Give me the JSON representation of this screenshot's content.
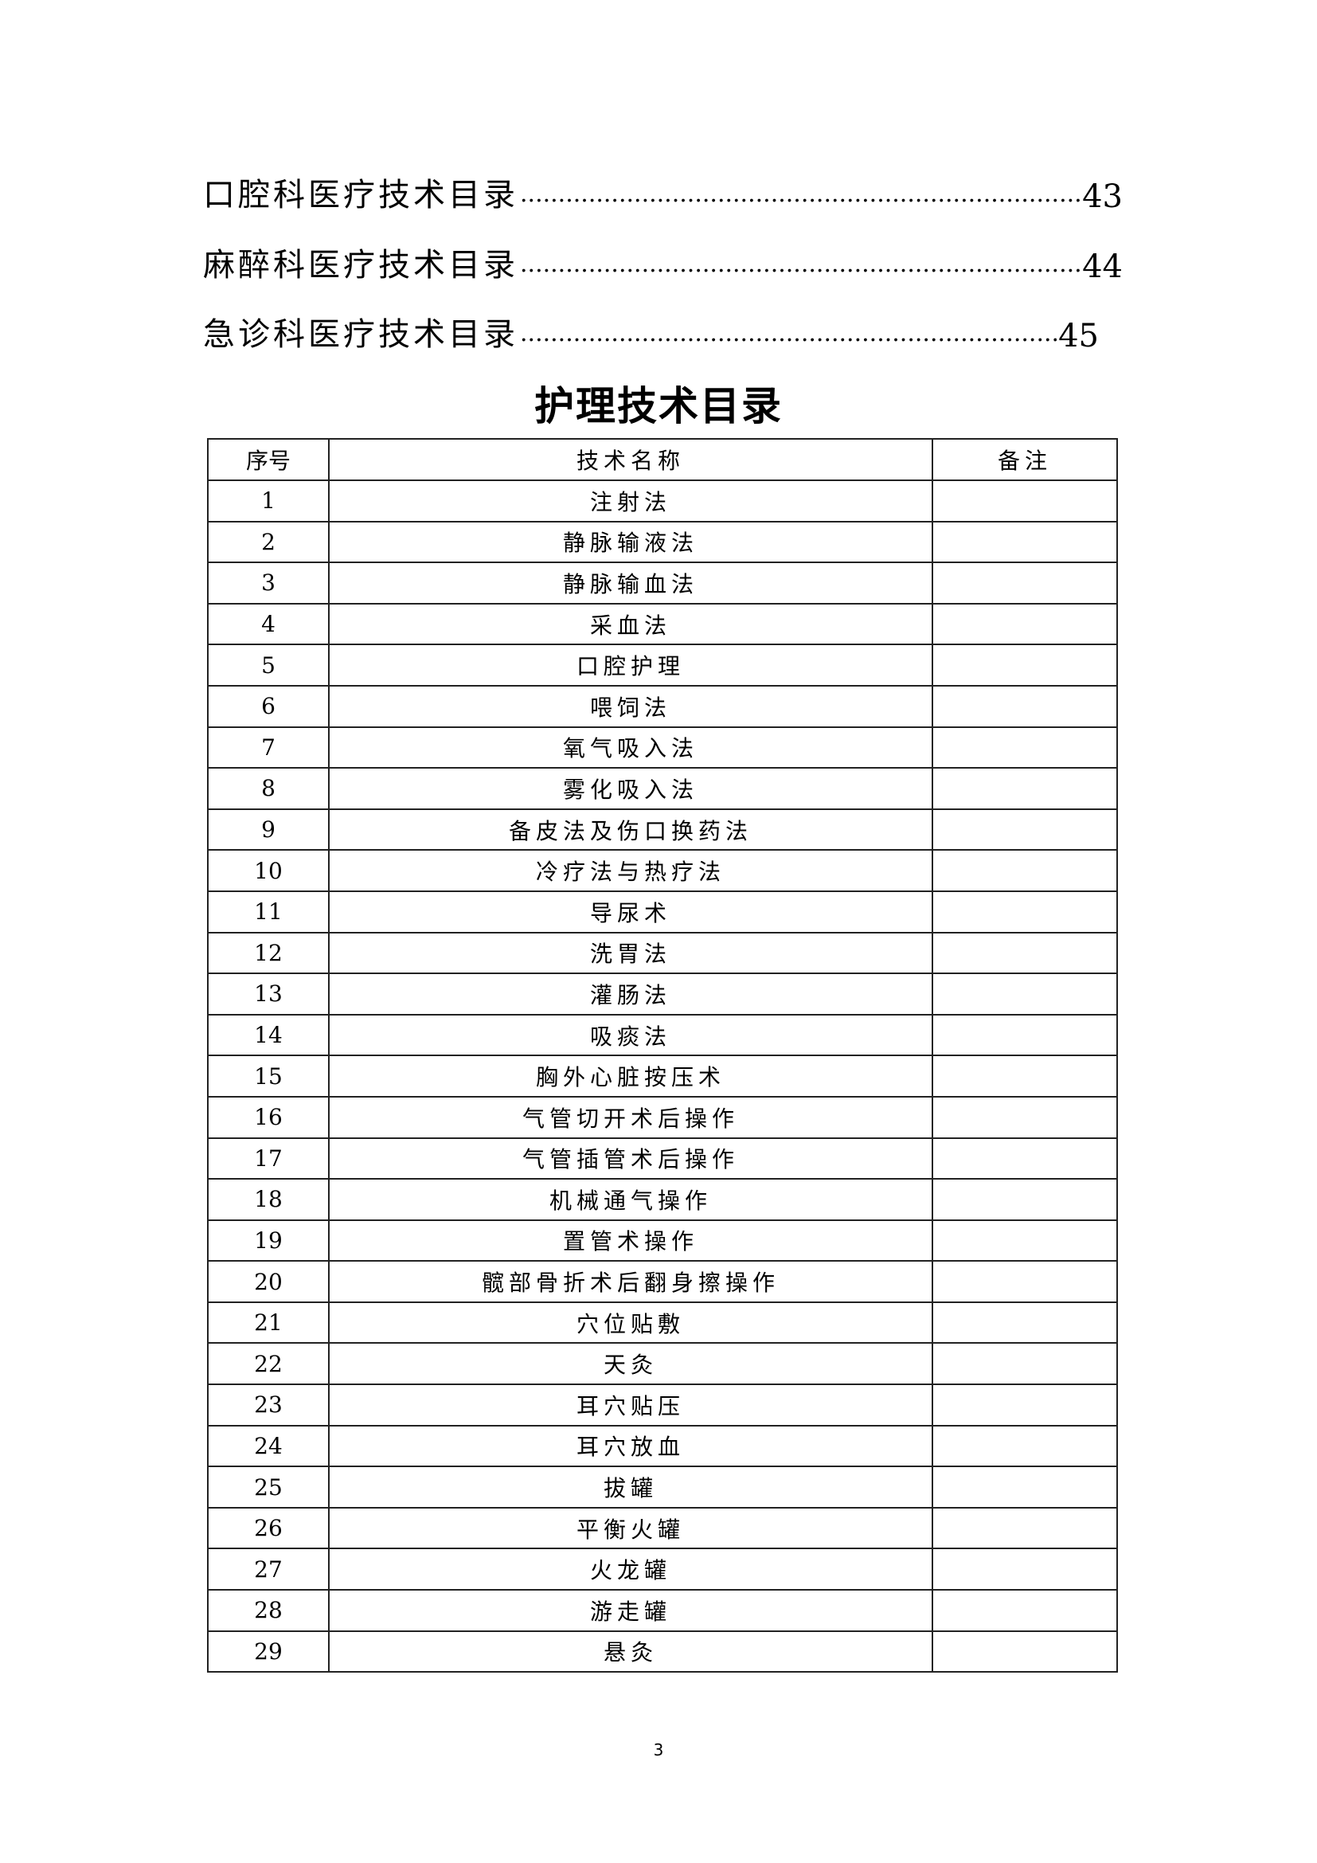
{
  "toc": [
    {
      "label": "口腔科医疗技术目录",
      "page": "43"
    },
    {
      "label": "麻醉科医疗技术目录",
      "page": "44"
    },
    {
      "label": "急诊科医疗技术目录",
      "page": "45"
    }
  ],
  "title": "护理技术目录",
  "table": {
    "headers": [
      "序号",
      "技术名称",
      "备注"
    ],
    "rows": [
      [
        "1",
        "注射法"
      ],
      [
        "2",
        "静脉输液法"
      ],
      [
        "3",
        "静脉输血法"
      ],
      [
        "4",
        "采血法"
      ],
      [
        "5",
        "口腔护理"
      ],
      [
        "6",
        "喂饲法"
      ],
      [
        "7",
        "氧气吸入法"
      ],
      [
        "8",
        "雾化吸入法"
      ],
      [
        "9",
        "备皮法及伤口换药法"
      ],
      [
        "10",
        "冷疗法与热疗法"
      ],
      [
        "11",
        "导尿术"
      ],
      [
        "12",
        "洗胃法"
      ],
      [
        "13",
        "灌肠法"
      ],
      [
        "14",
        "吸痰法"
      ],
      [
        "15",
        "胸外心脏按压术"
      ],
      [
        "16",
        "气管切开术后操作"
      ],
      [
        "17",
        "气管插管术后操作"
      ],
      [
        "18",
        "机械通气操作"
      ],
      [
        "19",
        "置管术操作"
      ],
      [
        "20",
        "髋部骨折术后翻身擦操作"
      ],
      [
        "21",
        "穴位贴敷"
      ],
      [
        "22",
        "天灸"
      ],
      [
        "23",
        "耳穴贴压"
      ],
      [
        "24",
        "耳穴放血"
      ],
      [
        "25",
        "拔罐"
      ],
      [
        "26",
        "平衡火罐"
      ],
      [
        "27",
        "火龙罐"
      ],
      [
        "28",
        "游走罐"
      ],
      [
        "29",
        "悬灸"
      ]
    ]
  },
  "page_number": "3"
}
